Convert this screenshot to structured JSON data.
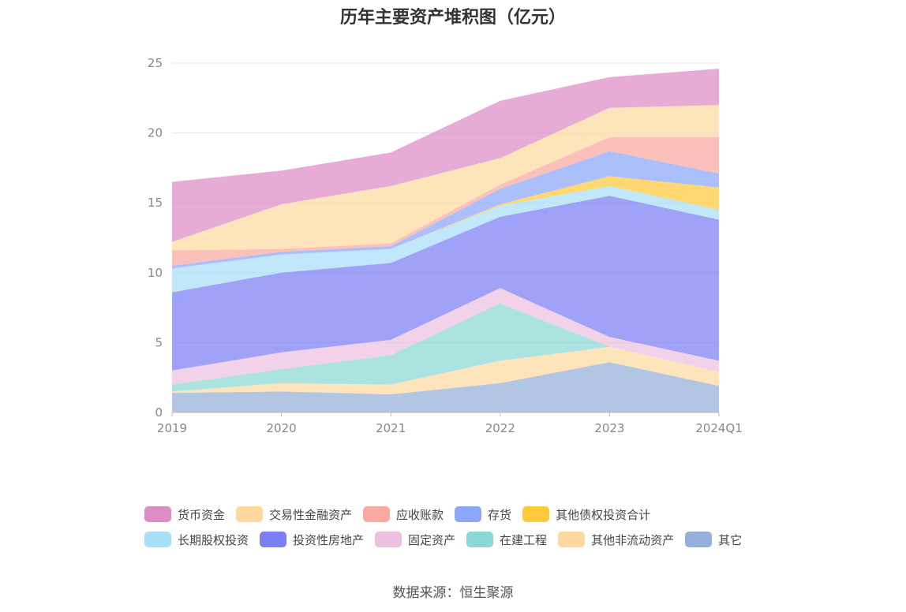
{
  "chart_data": {
    "type": "area",
    "stacked": true,
    "title": "历年主要资产堆积图（亿元）",
    "xlabel": "",
    "ylabel": "",
    "x": [
      "2019",
      "2020",
      "2021",
      "2022",
      "2023",
      "2024Q1"
    ],
    "ylim": [
      0,
      25
    ],
    "yticks": [
      0,
      5,
      10,
      15,
      20,
      25
    ],
    "grid": true,
    "legend_position": "bottom",
    "series": [
      {
        "name": "其它",
        "color": "#94b0da",
        "values": [
          1.4,
          1.5,
          1.3,
          2.1,
          3.6,
          1.9
        ]
      },
      {
        "name": "其他非流动资产",
        "color": "#fdd9a0",
        "values": [
          0.1,
          0.6,
          0.7,
          1.6,
          1.1,
          1.0
        ]
      },
      {
        "name": "在建工程",
        "color": "#8ad8d6",
        "values": [
          0.5,
          1.0,
          2.1,
          4.1,
          0.0,
          0.0
        ]
      },
      {
        "name": "固定资产",
        "color": "#ecc0e0",
        "values": [
          1.0,
          1.2,
          1.1,
          1.1,
          0.7,
          0.8
        ]
      },
      {
        "name": "投资性房地产",
        "color": "#7b7ef4",
        "values": [
          5.6,
          5.7,
          5.5,
          5.1,
          10.1,
          10.1
        ]
      },
      {
        "name": "长期股权投资",
        "color": "#a8dff8",
        "values": [
          1.7,
          1.3,
          1.0,
          0.8,
          0.7,
          0.7
        ]
      },
      {
        "name": "其他债权投资合计",
        "color": "#ffc93c",
        "values": [
          0.0,
          0.0,
          0.0,
          0.1,
          0.7,
          1.6
        ]
      },
      {
        "name": "存货",
        "color": "#8ba6fb",
        "values": [
          0.2,
          0.2,
          0.2,
          1.1,
          1.8,
          1.0
        ]
      },
      {
        "name": "应收账款",
        "color": "#fba8a0",
        "values": [
          1.1,
          0.2,
          0.2,
          0.3,
          1.0,
          2.6
        ]
      },
      {
        "name": "交易性金融资产",
        "color": "#fdd9a0",
        "values": [
          0.6,
          3.2,
          4.1,
          1.9,
          2.1,
          2.3
        ]
      },
      {
        "name": "货币资金",
        "color": "#dd8cc6",
        "values": [
          4.3,
          2.4,
          2.4,
          4.1,
          2.2,
          2.6
        ]
      }
    ]
  },
  "legend": {
    "row1": [
      {
        "label": "货币资金",
        "color": "#dd8cc6"
      },
      {
        "label": "交易性金融资产",
        "color": "#fdd9a0"
      },
      {
        "label": "应收账款",
        "color": "#fba8a0"
      },
      {
        "label": "存货",
        "color": "#8ba6fb"
      },
      {
        "label": "其他债权投资合计",
        "color": "#ffc93c"
      }
    ],
    "row2": [
      {
        "label": "长期股权投资",
        "color": "#a8dff8"
      },
      {
        "label": "投资性房地产",
        "color": "#7b7ef4"
      },
      {
        "label": "固定资产",
        "color": "#ecc0e0"
      },
      {
        "label": "在建工程",
        "color": "#8ad8d6"
      },
      {
        "label": "其他非流动资产",
        "color": "#fdd9a0"
      },
      {
        "label": "其它",
        "color": "#94b0da"
      }
    ]
  },
  "source": "数据来源：恒生聚源"
}
